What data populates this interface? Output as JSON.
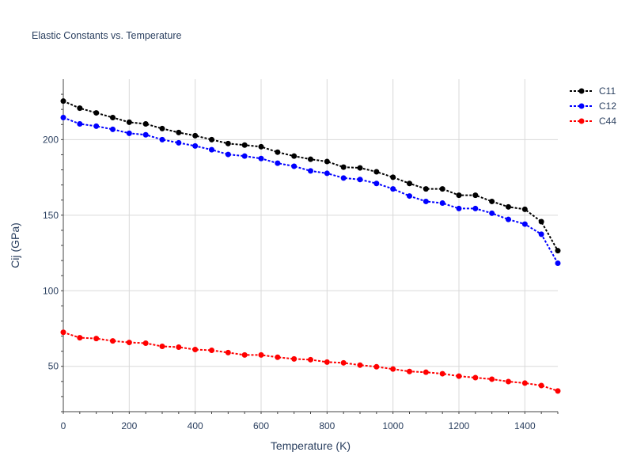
{
  "chart_data": {
    "type": "line",
    "title": "Elastic Constants vs. Temperature",
    "xlabel": "Temperature (K)",
    "ylabel": "Cij (GPa)",
    "xlim": [
      0,
      1500
    ],
    "ylim": [
      20,
      240
    ],
    "xticks": [
      0,
      200,
      400,
      600,
      800,
      1000,
      1200,
      1400
    ],
    "yticks": [
      50,
      100,
      150,
      200
    ],
    "grid": true,
    "legend_position": "top-right",
    "x": [
      0,
      50,
      100,
      150,
      200,
      250,
      300,
      350,
      400,
      450,
      500,
      550,
      600,
      650,
      700,
      750,
      800,
      850,
      900,
      950,
      1000,
      1050,
      1100,
      1150,
      1200,
      1250,
      1300,
      1350,
      1400,
      1450,
      1500
    ],
    "series": [
      {
        "name": "C11",
        "color": "#000000",
        "values": [
          225.5,
          220.8,
          217.7,
          214.6,
          211.5,
          210.4,
          207.3,
          204.7,
          202.6,
          200.0,
          197.4,
          196.4,
          195.3,
          191.7,
          189.1,
          187.0,
          185.5,
          181.8,
          181.3,
          178.7,
          175.1,
          171.0,
          167.4,
          167.4,
          163.2,
          163.2,
          159.1,
          155.5,
          153.9,
          145.7,
          126.5
        ]
      },
      {
        "name": "C12",
        "color": "#0000ff",
        "values": [
          214.6,
          210.4,
          208.9,
          206.8,
          204.2,
          203.2,
          200.0,
          197.9,
          195.8,
          193.3,
          190.2,
          189.1,
          187.5,
          184.4,
          182.4,
          179.3,
          177.7,
          174.6,
          173.6,
          171.0,
          167.4,
          162.7,
          159.1,
          158.0,
          154.4,
          154.4,
          151.3,
          147.2,
          144.1,
          137.4,
          118.2
        ]
      },
      {
        "name": "C44",
        "color": "#ff0000",
        "values": [
          72.5,
          68.9,
          68.4,
          66.8,
          65.8,
          65.3,
          63.2,
          62.7,
          61.1,
          60.6,
          59.1,
          57.5,
          57.5,
          56.0,
          54.9,
          54.4,
          52.8,
          52.3,
          50.8,
          49.7,
          48.2,
          46.6,
          46.1,
          45.1,
          43.5,
          42.5,
          41.5,
          39.9,
          38.9,
          37.3,
          33.7
        ]
      }
    ]
  }
}
